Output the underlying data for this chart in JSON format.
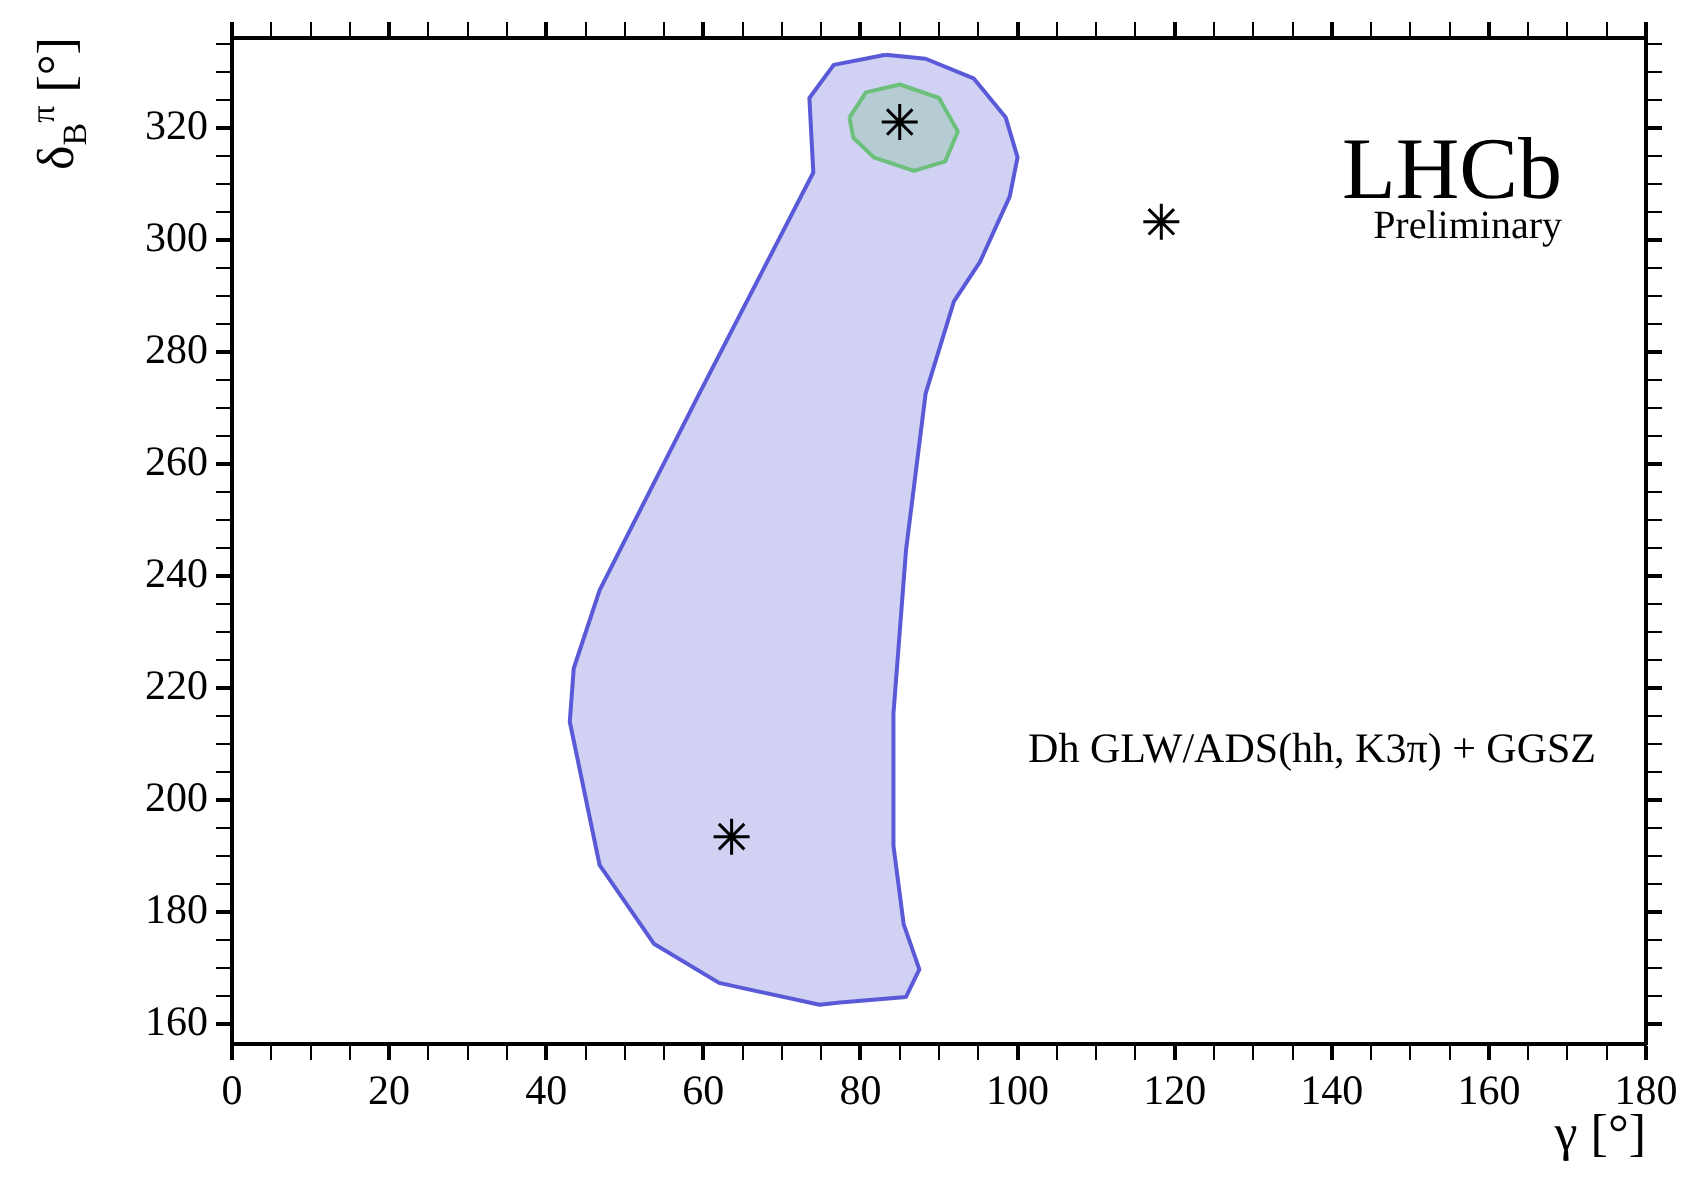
{
  "chart_data": {
    "type": "scatter",
    "xlabel": "γ [°]",
    "ylabel": "δ$_{B}$$^{π}$ [°]",
    "annotations": [
      "LHCb",
      "Preliminary",
      "Dh GLW/ADS(hh, K3π) + GGSZ"
    ],
    "xlim": [
      0,
      180
    ],
    "ylim": [
      156.5,
      336
    ],
    "xticks": [
      0,
      {
        "value": 5,
        "label": null
      },
      {
        "value": 10,
        "label": null
      },
      {
        "value": 15,
        "label": null
      },
      20,
      {
        "value": 25,
        "label": null
      },
      {
        "value": 30,
        "label": null
      },
      {
        "value": 35,
        "label": null
      },
      40,
      {
        "value": 45,
        "label": null
      },
      {
        "value": 50,
        "label": null
      },
      {
        "value": 55,
        "label": null
      },
      60,
      {
        "value": 65,
        "label": null
      },
      {
        "value": 70,
        "label": null
      },
      {
        "value": 75,
        "label": null
      },
      80,
      {
        "value": 85,
        "label": null
      },
      {
        "value": 90,
        "label": null
      },
      {
        "value": 95,
        "label": null
      },
      100,
      {
        "value": 105,
        "label": null
      },
      {
        "value": 110,
        "label": null
      },
      {
        "value": 115,
        "label": null
      },
      120,
      {
        "value": 125,
        "label": null
      },
      {
        "value": 130,
        "label": null
      },
      {
        "value": 135,
        "label": null
      },
      140,
      {
        "value": 145,
        "label": null
      },
      {
        "value": 150,
        "label": null
      },
      {
        "value": 155,
        "label": null
      },
      160,
      {
        "value": 165,
        "label": null
      },
      {
        "value": 170,
        "label": null
      },
      {
        "value": 175,
        "label": null
      },
      180
    ],
    "yticks": [
      160,
      {
        "value": 165,
        "label": null
      },
      {
        "value": 170,
        "label": null
      },
      {
        "value": 175,
        "label": null
      },
      180,
      {
        "value": 185,
        "label": null
      },
      {
        "value": 190,
        "label": null
      },
      {
        "value": 195,
        "label": null
      },
      200,
      {
        "value": 205,
        "label": null
      },
      {
        "value": 210,
        "label": null
      },
      {
        "value": 215,
        "label": null
      },
      220,
      {
        "value": 225,
        "label": null
      },
      {
        "value": 230,
        "label": null
      },
      {
        "value": 235,
        "label": null
      },
      240,
      {
        "value": 245,
        "label": null
      },
      {
        "value": 250,
        "label": null
      },
      {
        "value": 255,
        "label": null
      },
      260,
      {
        "value": 265,
        "label": null
      },
      {
        "value": 270,
        "label": null
      },
      {
        "value": 275,
        "label": null
      },
      280,
      {
        "value": 285,
        "label": null
      },
      {
        "value": 290,
        "label": null
      },
      {
        "value": 295,
        "label": null
      },
      300,
      {
        "value": 305,
        "label": null
      },
      {
        "value": 310,
        "label": null
      },
      {
        "value": 315,
        "label": null
      },
      320,
      {
        "value": 325,
        "label": null
      },
      {
        "value": 330,
        "label": null
      },
      {
        "value": 335,
        "label": null
      }
    ],
    "series": [
      {
        "type": "area",
        "color": "#5a5ad8",
        "x": [
          83.2,
          88.3,
          94.4,
          98.5,
          100,
          99,
          95.2,
          91.9,
          88.3,
          85.8,
          84.2,
          84.2,
          85.5,
          87.5,
          85.8,
          77.4,
          74.8,
          62,
          53.7,
          46.8,
          43,
          43.5,
          46.8,
          59.5,
          74,
          73.5,
          76.6,
          83.2
        ],
        "values": [
          333,
          332.3,
          328.8,
          321.8,
          314.7,
          307.7,
          296,
          289,
          272.6,
          244.6,
          215.4,
          191.9,
          177.9,
          169.8,
          164.9,
          163.9,
          163.5,
          167.4,
          174.4,
          188.4,
          214,
          223.5,
          237.5,
          272.6,
          312,
          325.3,
          331.2,
          333
        ]
      },
      {
        "type": "area",
        "color": "#6cc07c",
        "x": [
          78.6,
          80.7,
          85,
          90,
          92.4,
          90.8,
          86.8,
          81.7,
          79.1,
          78.6
        ],
        "values": [
          321.8,
          326.3,
          327.7,
          325.3,
          319.3,
          314,
          312.3,
          314.7,
          318.2,
          321.8
        ]
      },
      {
        "type": "scatter",
        "color": "#000000",
        "marker": "cross",
        "x": [
          63.6,
          85,
          118.3
        ],
        "values": [
          193.5,
          321,
          303.2
        ]
      }
    ]
  }
}
